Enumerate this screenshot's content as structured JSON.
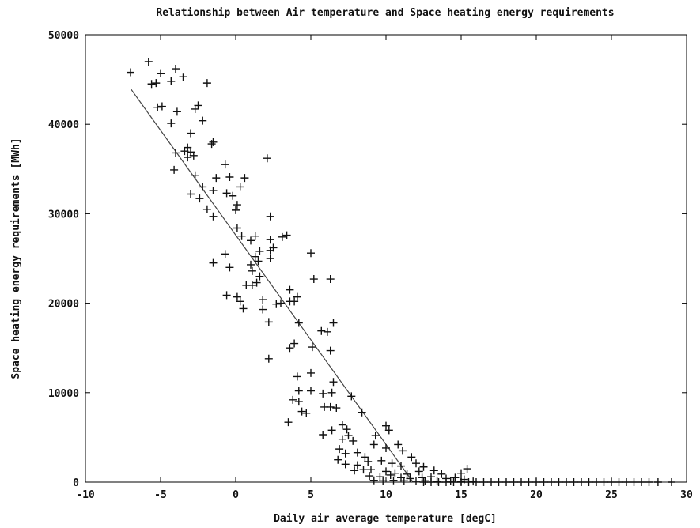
{
  "chart_data": {
    "type": "scatter",
    "title": "Relationship between Air temperature and Space heating energy requirements",
    "xlabel": "Daily air average temperature [degC]",
    "ylabel": "Space heating energy requirements [MWh]",
    "xlim": [
      -10,
      30
    ],
    "ylim": [
      0,
      50000
    ],
    "xticks": [
      "-10",
      "-5",
      "0",
      "5",
      "10",
      "15",
      "20",
      "25",
      "30"
    ],
    "yticks": [
      "0",
      "10000",
      "20000",
      "30000",
      "40000",
      "50000"
    ],
    "grid": false,
    "legend": "none",
    "colors": {
      "points": "#111111",
      "fit_line": "#444444",
      "axes": "#000000"
    },
    "fit_line": [
      [
        -7.0,
        44000
      ],
      [
        11.8,
        0
      ],
      [
        29,
        0
      ]
    ],
    "points": [
      [
        -7.0,
        45800
      ],
      [
        -5.8,
        47000
      ],
      [
        -5.6,
        44500
      ],
      [
        -5.3,
        44600
      ],
      [
        -5.0,
        45700
      ],
      [
        -4.3,
        44800
      ],
      [
        -4.0,
        46200
      ],
      [
        -3.5,
        45300
      ],
      [
        -1.9,
        44600
      ],
      [
        -5.2,
        41900
      ],
      [
        -4.9,
        42000
      ],
      [
        -3.9,
        41400
      ],
      [
        -2.7,
        41700
      ],
      [
        -2.5,
        42100
      ],
      [
        -4.3,
        40100
      ],
      [
        -3.0,
        39000
      ],
      [
        -2.2,
        40400
      ],
      [
        -1.5,
        38000
      ],
      [
        -1.6,
        37800
      ],
      [
        -4.0,
        36800
      ],
      [
        -3.4,
        37000
      ],
      [
        -3.2,
        37400
      ],
      [
        -3.0,
        36900
      ],
      [
        -2.8,
        36500
      ],
      [
        -3.2,
        36300
      ],
      [
        -4.1,
        34900
      ],
      [
        -2.7,
        34300
      ],
      [
        -2.2,
        33000
      ],
      [
        -1.3,
        34000
      ],
      [
        -0.7,
        35500
      ],
      [
        -0.4,
        34100
      ],
      [
        0.6,
        34000
      ],
      [
        2.1,
        36200
      ],
      [
        -1.5,
        32600
      ],
      [
        -3.0,
        32200
      ],
      [
        -2.4,
        31700
      ],
      [
        -0.6,
        32300
      ],
      [
        -0.2,
        32000
      ],
      [
        0.3,
        33000
      ],
      [
        -1.9,
        30500
      ],
      [
        -1.5,
        29700
      ],
      [
        0.0,
        30400
      ],
      [
        0.1,
        31000
      ],
      [
        2.3,
        29700
      ],
      [
        0.1,
        28400
      ],
      [
        0.4,
        27500
      ],
      [
        1.0,
        27000
      ],
      [
        1.3,
        27500
      ],
      [
        2.3,
        27100
      ],
      [
        3.1,
        27400
      ],
      [
        3.4,
        27600
      ],
      [
        1.3,
        25200
      ],
      [
        1.6,
        25800
      ],
      [
        2.3,
        25900
      ],
      [
        2.3,
        25000
      ],
      [
        2.5,
        26200
      ],
      [
        -0.7,
        25500
      ],
      [
        -1.5,
        24500
      ],
      [
        -0.4,
        24000
      ],
      [
        1.0,
        24300
      ],
      [
        1.5,
        24700
      ],
      [
        1.1,
        23600
      ],
      [
        1.6,
        23000
      ],
      [
        1.1,
        22000
      ],
      [
        0.7,
        22000
      ],
      [
        1.4,
        22300
      ],
      [
        3.6,
        21500
      ],
      [
        5.0,
        25600
      ],
      [
        5.2,
        22700
      ],
      [
        6.3,
        22700
      ],
      [
        -0.6,
        20900
      ],
      [
        0.1,
        20700
      ],
      [
        0.3,
        20200
      ],
      [
        0.5,
        19400
      ],
      [
        1.8,
        20400
      ],
      [
        2.7,
        19900
      ],
      [
        3.0,
        20000
      ],
      [
        3.6,
        20200
      ],
      [
        3.9,
        20200
      ],
      [
        4.1,
        20700
      ],
      [
        2.2,
        17900
      ],
      [
        1.8,
        19300
      ],
      [
        4.2,
        17800
      ],
      [
        5.7,
        16900
      ],
      [
        6.1,
        16800
      ],
      [
        6.5,
        17800
      ],
      [
        3.6,
        15000
      ],
      [
        3.9,
        15500
      ],
      [
        5.1,
        15100
      ],
      [
        6.3,
        14700
      ],
      [
        2.2,
        13800
      ],
      [
        4.1,
        11800
      ],
      [
        5.0,
        12200
      ],
      [
        6.5,
        11200
      ],
      [
        4.2,
        10200
      ],
      [
        3.8,
        9200
      ],
      [
        4.2,
        9000
      ],
      [
        5.0,
        10200
      ],
      [
        5.8,
        9900
      ],
      [
        6.4,
        10000
      ],
      [
        7.7,
        9600
      ],
      [
        4.4,
        7900
      ],
      [
        4.7,
        7700
      ],
      [
        5.9,
        8400
      ],
      [
        6.3,
        8400
      ],
      [
        6.7,
        8300
      ],
      [
        8.4,
        7800
      ],
      [
        3.5,
        6700
      ],
      [
        6.4,
        5800
      ],
      [
        5.8,
        5300
      ],
      [
        7.1,
        6400
      ],
      [
        7.4,
        5900
      ],
      [
        7.5,
        5200
      ],
      [
        7.1,
        4800
      ],
      [
        7.8,
        4600
      ],
      [
        9.3,
        5200
      ],
      [
        10.0,
        6300
      ],
      [
        10.2,
        5800
      ],
      [
        6.9,
        3700
      ],
      [
        7.3,
        3200
      ],
      [
        8.1,
        3300
      ],
      [
        8.6,
        2800
      ],
      [
        9.2,
        4200
      ],
      [
        10.0,
        3800
      ],
      [
        10.8,
        4200
      ],
      [
        11.1,
        3500
      ],
      [
        11.7,
        2800
      ],
      [
        6.8,
        2500
      ],
      [
        7.3,
        2000
      ],
      [
        8.1,
        1900
      ],
      [
        8.8,
        2300
      ],
      [
        9.7,
        2400
      ],
      [
        10.4,
        2100
      ],
      [
        11.0,
        1800
      ],
      [
        12.0,
        2100
      ],
      [
        12.5,
        1700
      ],
      [
        7.9,
        1300
      ],
      [
        8.5,
        1400
      ],
      [
        9.0,
        1400
      ],
      [
        10.0,
        1200
      ],
      [
        10.6,
        1000
      ],
      [
        11.4,
        900
      ],
      [
        12.2,
        1200
      ],
      [
        13.2,
        1300
      ],
      [
        13.7,
        900
      ],
      [
        15.0,
        1000
      ],
      [
        15.4,
        1500
      ],
      [
        8.9,
        700
      ],
      [
        9.6,
        600
      ],
      [
        10.3,
        800
      ],
      [
        11.0,
        500
      ],
      [
        11.6,
        400
      ],
      [
        12.4,
        500
      ],
      [
        13.0,
        600
      ],
      [
        14.0,
        400
      ],
      [
        14.6,
        500
      ],
      [
        15.2,
        300
      ],
      [
        9.2,
        200
      ],
      [
        9.8,
        150
      ],
      [
        10.5,
        200
      ],
      [
        11.2,
        150
      ],
      [
        12.0,
        100
      ],
      [
        12.6,
        150
      ],
      [
        13.4,
        100
      ],
      [
        14.3,
        120
      ],
      [
        15.0,
        100
      ],
      [
        15.8,
        80
      ],
      [
        12.5,
        0
      ],
      [
        13.0,
        0
      ],
      [
        13.5,
        0
      ],
      [
        14.0,
        0
      ],
      [
        14.5,
        0
      ],
      [
        15.0,
        0
      ],
      [
        15.5,
        0
      ],
      [
        16.0,
        0
      ],
      [
        16.5,
        0
      ],
      [
        17.0,
        0
      ],
      [
        17.5,
        0
      ],
      [
        18.0,
        0
      ],
      [
        18.5,
        0
      ],
      [
        19.0,
        0
      ],
      [
        19.5,
        0
      ],
      [
        20.0,
        0
      ],
      [
        20.5,
        0
      ],
      [
        21.0,
        0
      ],
      [
        21.5,
        0
      ],
      [
        22.0,
        0
      ],
      [
        22.5,
        0
      ],
      [
        23.0,
        0
      ],
      [
        23.5,
        0
      ],
      [
        24.0,
        0
      ],
      [
        24.5,
        0
      ],
      [
        25.0,
        0
      ],
      [
        25.5,
        0
      ],
      [
        26.0,
        0
      ],
      [
        26.5,
        0
      ],
      [
        27.0,
        0
      ],
      [
        27.5,
        0
      ],
      [
        28.1,
        0
      ],
      [
        29.0,
        0
      ]
    ]
  }
}
